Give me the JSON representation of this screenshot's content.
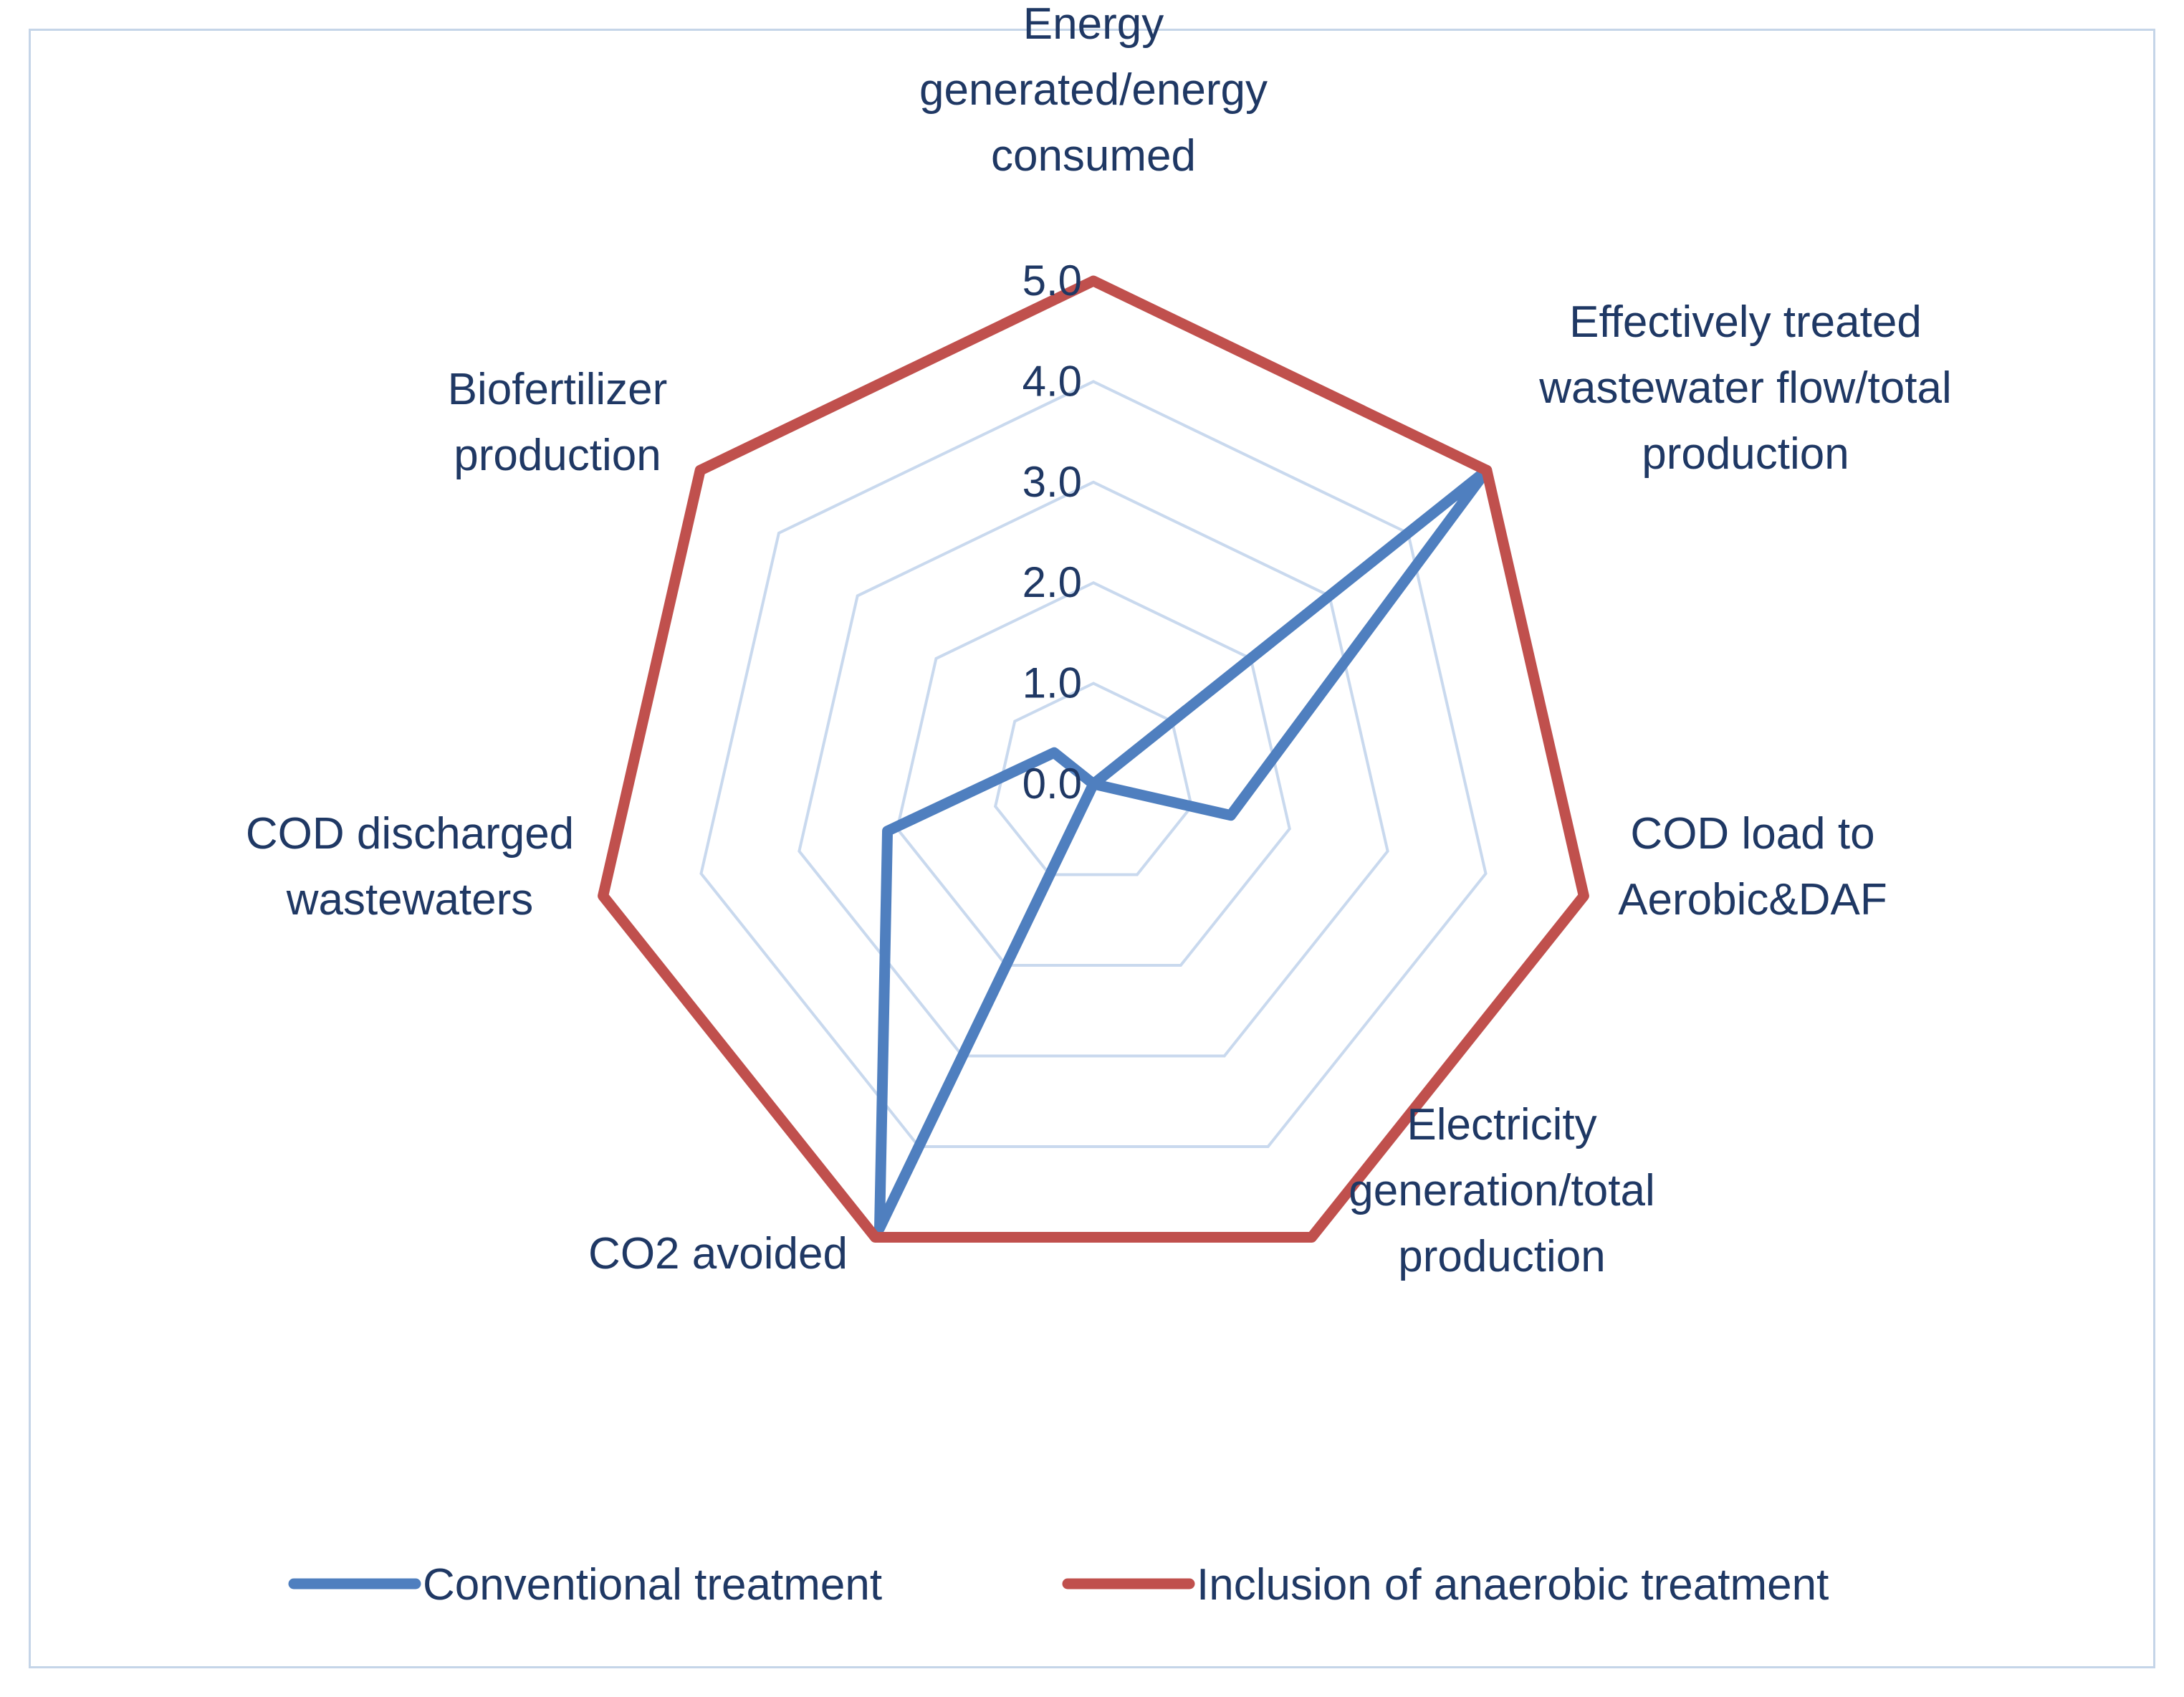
{
  "chart_data": {
    "type": "radar",
    "title": "",
    "axes": [
      {
        "label_lines": [
          "Energy",
          "generated/energy",
          "consumed"
        ]
      },
      {
        "label_lines": [
          "Effectively treated",
          "wastewater flow/total",
          "production"
        ]
      },
      {
        "label_lines": [
          "COD load to",
          "Aerobic&DAF"
        ]
      },
      {
        "label_lines": [
          "Electricity",
          "generation/total",
          "production"
        ]
      },
      {
        "label_lines": [
          "CO2 avoided"
        ]
      },
      {
        "label_lines": [
          "COD discharged",
          "wastewaters"
        ]
      },
      {
        "label_lines": [
          "Biofertilizer",
          "production"
        ]
      }
    ],
    "ticks": [
      "0.0",
      "1.0",
      "2.0",
      "3.0",
      "4.0",
      "5.0"
    ],
    "range": [
      0,
      5
    ],
    "grid": true,
    "series": [
      {
        "name": "Conventional treatment",
        "color": "#4f7fbf",
        "values": [
          0,
          5,
          1.4,
          0,
          4.9,
          2.1,
          0.5
        ]
      },
      {
        "name": "Inclusion of anaerobic treatment",
        "color": "#c0504d",
        "values": [
          5,
          5,
          5,
          5,
          5,
          5,
          5
        ]
      }
    ],
    "legend_position": "bottom",
    "grid_color": "#c9d9ee"
  }
}
